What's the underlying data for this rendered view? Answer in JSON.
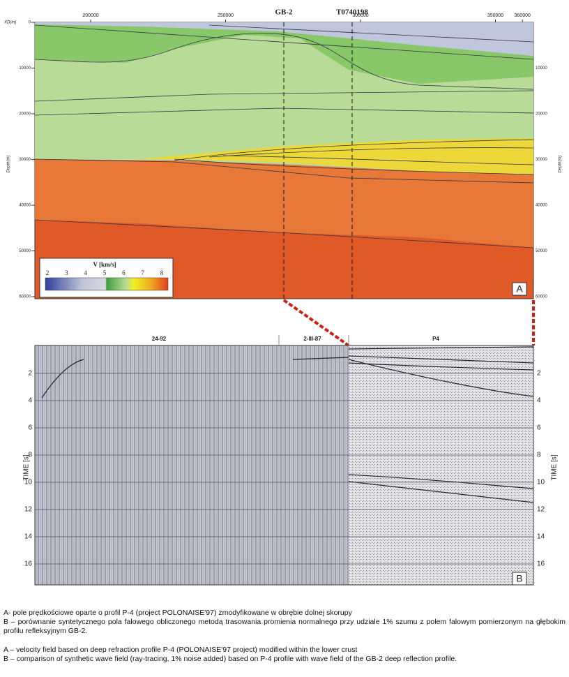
{
  "panel_a": {
    "x_axis_label": "XD(m)",
    "y_axis_label": "Depth(m)",
    "xticks": [
      200000,
      250000,
      300000,
      350000,
      360000
    ],
    "yticks": [
      0,
      10000,
      20000,
      30000,
      40000,
      50000,
      60000
    ],
    "markers": [
      "GB-2",
      "T0740198"
    ],
    "legend": {
      "title": "V [km/s]",
      "ticks": [
        2,
        3,
        4,
        5,
        6,
        7,
        8
      ]
    },
    "panel_label": "A"
  },
  "panel_b": {
    "sections": [
      "24-92",
      "2-III-87",
      "P4"
    ],
    "y_axis_label": "TIME [s]",
    "yticks": [
      2,
      4,
      6,
      8,
      10,
      12,
      14,
      16
    ],
    "panel_label": "B"
  },
  "captions": [
    "A- pole prędkościowe oparte o profil P-4 (project POLONAISE'97) zmodyfikowane w obrębie dolnej skorupy",
    "B – porównanie syntetycznego pola falowego obliczonego metodą trasowania promienia normalnego przy udziale 1% szumu z polem falowym pomierzonym na głębokim profilu refleksyjnym GB-2.",
    "A – velocity field based on deep refraction profile P-4 (POLONAISE'97 project) modified within the lower crust",
    "B – comparison of synthetic wave field (ray-tracing, 1% noise added) based on P-4 profile with wave field of the GB-2 deep reflection profile."
  ]
}
